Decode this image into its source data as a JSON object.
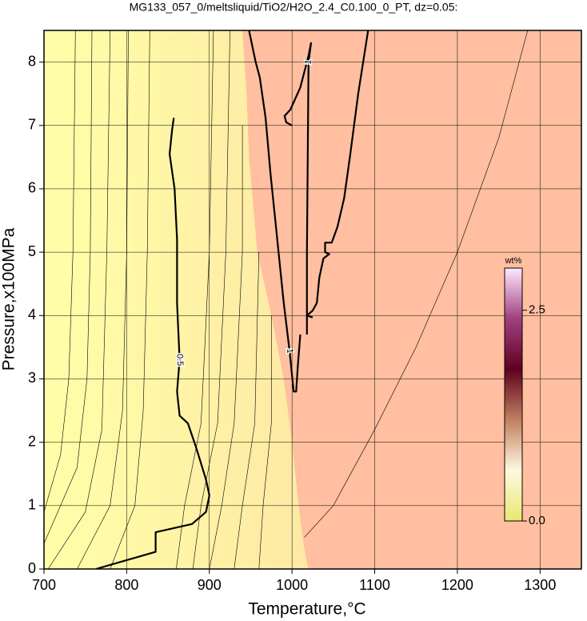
{
  "chart_data": {
    "type": "contour",
    "title": "MG133_057_0/meltsliquid/TiO2/H2O_2.4_C0.100_0_PT, dz=0.05:",
    "xlabel": "Temperature,°C",
    "ylabel": "Pressure,x100MPa",
    "xlim": [
      700,
      1350
    ],
    "xticks": [
      700,
      800,
      900,
      1000,
      1100,
      1200,
      1300
    ],
    "ylim": [
      0,
      8.5
    ],
    "yticks": [
      0,
      1,
      2,
      3,
      4,
      5,
      6,
      7,
      8
    ],
    "grid": true,
    "regions": [
      {
        "color": "#ffbfa0",
        "x": [
          940,
          945,
          948,
          958,
          975,
          990,
          1000,
          1008,
          1015,
          1020,
          1350,
          1350
        ],
        "y": [
          8.5,
          7.5,
          6.5,
          5,
          4,
          3,
          2,
          1,
          0.3,
          0,
          0,
          8.5
        ]
      }
    ],
    "thin_lines": [
      {
        "x": [
          700,
          720,
          730,
          735,
          738
        ],
        "y": [
          0.9,
          1.8,
          3,
          5,
          8.5
        ]
      },
      {
        "x": [
          700,
          740,
          752,
          756,
          758
        ],
        "y": [
          0.4,
          1.6,
          3,
          5,
          8.5
        ]
      },
      {
        "x": [
          705,
          750,
          770,
          776,
          780
        ],
        "y": [
          0,
          0.9,
          2.2,
          5,
          8.5
        ]
      },
      {
        "x": [
          740,
          780,
          795,
          800,
          802
        ],
        "y": [
          0,
          1.0,
          2.5,
          5,
          8.5
        ]
      },
      {
        "x": [
          780,
          810,
          820,
          825,
          828
        ],
        "y": [
          0,
          1.0,
          2.5,
          5,
          8.5
        ]
      },
      {
        "x": [
          860,
          870,
          890,
          900,
          905
        ],
        "y": [
          0,
          1,
          2.3,
          5,
          8.5
        ]
      },
      {
        "x": [
          880,
          890,
          910,
          920,
          925
        ],
        "y": [
          0,
          1,
          2.3,
          5,
          8.5
        ]
      },
      {
        "x": [
          900,
          915,
          930,
          940,
          940
        ],
        "y": [
          0,
          1,
          2.3,
          5,
          7
        ]
      },
      {
        "x": [
          930,
          940,
          955,
          960
        ],
        "y": [
          0,
          1,
          2.3,
          5
        ]
      },
      {
        "x": [
          960,
          965,
          975,
          975
        ],
        "y": [
          0,
          1,
          2.3,
          4
        ]
      },
      {
        "x": [
          1015,
          1050,
          1100,
          1150,
          1200,
          1250,
          1285
        ],
        "y": [
          0.5,
          1,
          2.2,
          3.5,
          5,
          6.8,
          8.5
        ]
      }
    ],
    "contours": [
      {
        "level": 0.5,
        "lines": [
          {
            "x": [
              763,
              835,
              835,
              879,
              896,
              900,
              896,
              884,
              874,
              864,
              861,
              864,
              861,
              861,
              858,
              852,
              855,
              857
            ],
            "y": [
              0,
              0.27,
              0.58,
              0.71,
              0.9,
              1.16,
              1.41,
              1.92,
              2.3,
              2.42,
              2.8,
              3.3,
              4.2,
              5.2,
              6.0,
              6.55,
              6.93,
              7.12
            ]
          }
        ]
      },
      {
        "level": 1,
        "lines": [
          {
            "x": [
              948,
              956,
              961,
              968,
              974,
              981,
              985,
              990,
              997,
              1002,
              1005,
              1007,
              1010
            ],
            "y": [
              8.5,
              8.0,
              7.76,
              7.12,
              6.23,
              5.35,
              4.84,
              4.2,
              3.44,
              2.8,
              2.8,
              3.2,
              3.7
            ]
          },
          {
            "x": [
              1018,
              1018,
              1019,
              1020,
              1023,
              1020,
              1010,
              998,
              991,
              993,
              1000
            ],
            "y": [
              3.7,
              5,
              6.5,
              8.0,
              8.3,
              8.1,
              7.6,
              7.25,
              7.15,
              7.05,
              7.0
            ]
          },
          {
            "x": [
              1092,
              1080,
              1070,
              1063,
              1055,
              1048,
              1040,
              1040,
              1045,
              1038,
              1033,
              1030,
              1025,
              1018,
              1025
            ],
            "y": [
              8.5,
              7.5,
              6.5,
              5.85,
              5.4,
              5.15,
              5.15,
              5.0,
              4.97,
              4.9,
              4.6,
              4.2,
              4.08,
              4.0,
              3.97
            ]
          }
        ]
      }
    ],
    "colorbar": {
      "label": "wt%",
      "lim": [
        0,
        3.0
      ],
      "ticks": [
        {
          "value": 0,
          "label": "0.0"
        },
        {
          "value": 2.5,
          "label": "2.5"
        }
      ],
      "colors": [
        "#e8e870",
        "#fff8e0",
        "#c08060",
        "#600020",
        "#a04080",
        "#ffe8ff"
      ]
    }
  }
}
